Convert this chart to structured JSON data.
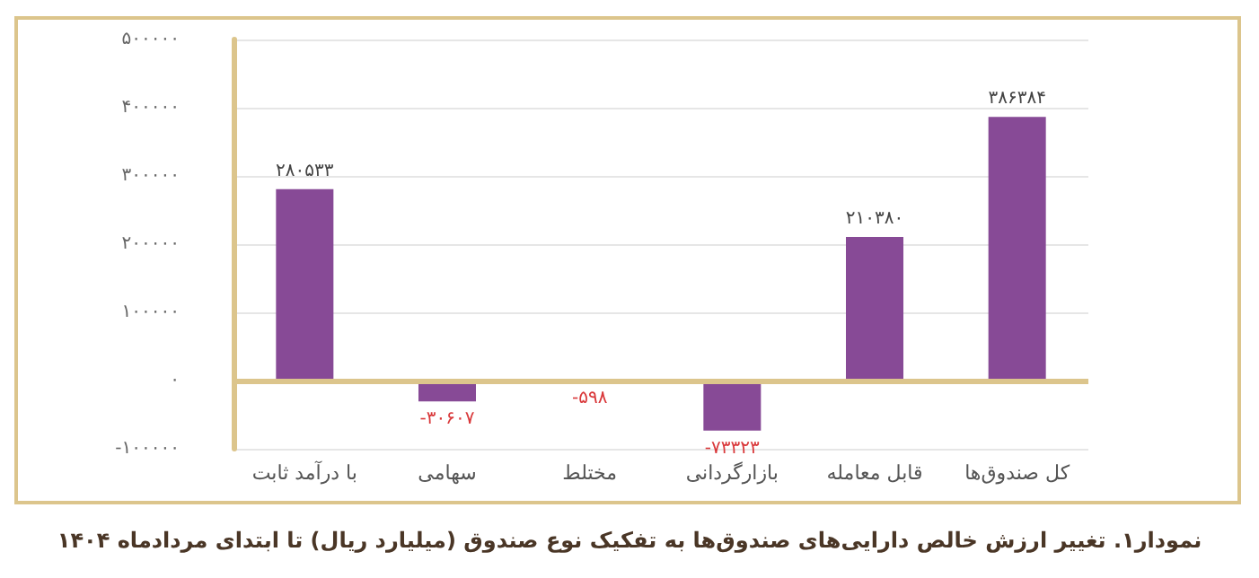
{
  "chart_data": {
    "type": "bar",
    "title": "نمودار۱. تغییر ارزش خالص دارایی‌های صندوق‌ها به تفکیک نوع صندوق (میلیارد ریال) تا ابتدای مردادماه ۱۴۰۴",
    "categories": [
      "با درآمد ثابت",
      "سهامی",
      "مختلط",
      "بازارگردانی",
      "قابل معامله",
      "کل صندوق‌ها"
    ],
    "values": [
      280533,
      -30607,
      -598,
      -73323,
      210380,
      386384
    ],
    "value_labels": [
      "۲۸۰۵۳۳",
      "-۳۰۶۰۷",
      "-۵۹۸",
      "-۷۳۳۲۳",
      "۲۱۰۳۸۰",
      "۳۸۶۳۸۴"
    ],
    "color": "#874a96",
    "ylim": [
      -100000,
      500000
    ],
    "yticks": [
      {
        "value": -100000,
        "label": "-۱۰۰۰۰۰"
      },
      {
        "value": 0,
        "label": "۰"
      },
      {
        "value": 100000,
        "label": "۱۰۰۰۰۰"
      },
      {
        "value": 200000,
        "label": "۲۰۰۰۰۰"
      },
      {
        "value": 300000,
        "label": "۳۰۰۰۰۰"
      },
      {
        "value": 400000,
        "label": "۴۰۰۰۰۰"
      },
      {
        "value": 500000,
        "label": "۵۰۰۰۰۰"
      }
    ],
    "ref_lines": [
      {
        "axis": "y",
        "value": 0,
        "color": "#dcc58c"
      }
    ],
    "grid": "y"
  }
}
